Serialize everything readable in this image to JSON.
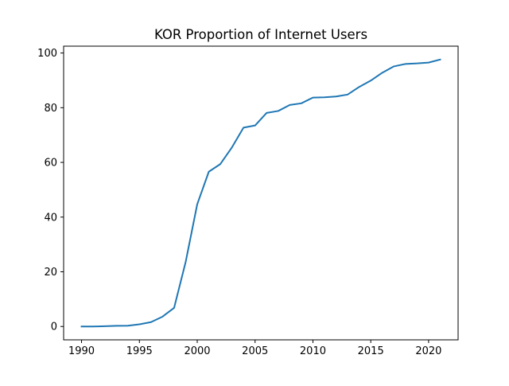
{
  "chart_data": {
    "type": "line",
    "title": "KOR Proportion of Internet Users",
    "xlabel": "",
    "ylabel": "",
    "xlim": [
      1988.45,
      2022.55
    ],
    "ylim": [
      -4.88,
      102.5
    ],
    "xticks": [
      1990,
      1995,
      2000,
      2005,
      2010,
      2015,
      2020
    ],
    "yticks": [
      0,
      20,
      40,
      60,
      80,
      100
    ],
    "grid": false,
    "legend": "none",
    "series": [
      {
        "color": "#1f77b4",
        "x": [
          1990,
          1991,
          1992,
          1993,
          1994,
          1995,
          1996,
          1997,
          1998,
          1999,
          2000,
          2001,
          2002,
          2003,
          2004,
          2005,
          2006,
          2007,
          2008,
          2009,
          2010,
          2011,
          2012,
          2013,
          2014,
          2015,
          2016,
          2017,
          2018,
          2019,
          2020,
          2021
        ],
        "y": [
          0.0,
          0.0,
          0.1,
          0.25,
          0.3,
          0.8,
          1.6,
          3.6,
          6.8,
          23.6,
          44.7,
          56.6,
          59.4,
          65.5,
          72.7,
          73.5,
          78.1,
          78.8,
          81.0,
          81.6,
          83.7,
          83.8,
          84.1,
          84.8,
          87.6,
          89.9,
          92.8,
          95.1,
          96.0,
          96.2,
          96.5,
          97.6
        ]
      }
    ]
  }
}
